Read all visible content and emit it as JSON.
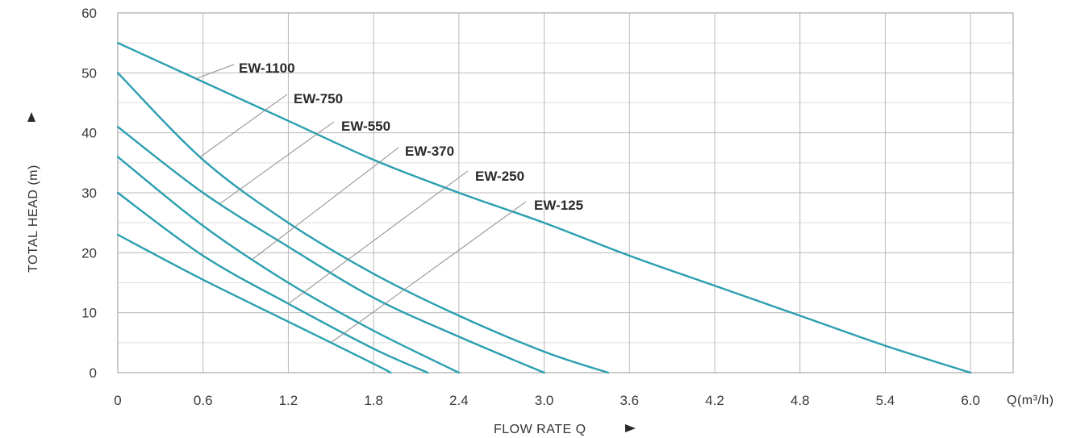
{
  "chart_data": {
    "type": "line",
    "title": "",
    "xlabel": "FLOW RATE Q",
    "ylabel": "TOTAL HEAD (m)",
    "x_unit_label": "Q(m³/h)",
    "xlim": [
      0,
      6.3
    ],
    "ylim": [
      0,
      60
    ],
    "x_ticks": [
      0,
      0.6,
      1.2,
      1.8,
      2.4,
      3.0,
      3.6,
      4.2,
      4.8,
      5.4,
      6.0
    ],
    "x_tick_labels": [
      "0",
      "0.6",
      "1.2",
      "1.8",
      "2.4",
      "3.0",
      "3.6",
      "4.2",
      "4.8",
      "5.4",
      "6.0"
    ],
    "y_ticks": [
      0,
      10,
      20,
      30,
      40,
      50,
      60
    ],
    "y_tick_labels": [
      "0",
      "10",
      "20",
      "30",
      "40",
      "50",
      "60"
    ],
    "grid": true,
    "line_color": "#2a9fb0",
    "series": [
      {
        "name": "EW-1100",
        "x": [
          0,
          0.6,
          1.2,
          1.8,
          2.4,
          3.0,
          3.6,
          4.2,
          4.8,
          5.4,
          6.0
        ],
        "y": [
          55,
          48.5,
          42,
          35.5,
          30,
          25,
          19.5,
          14.5,
          9.5,
          4.5,
          0
        ]
      },
      {
        "name": "EW-750",
        "x": [
          0,
          0.6,
          1.2,
          1.8,
          2.4,
          3.0,
          3.45
        ],
        "y": [
          50,
          35.5,
          25,
          16.5,
          9.5,
          3.5,
          0
        ]
      },
      {
        "name": "EW-550",
        "x": [
          0,
          0.6,
          1.2,
          1.8,
          2.4,
          3.0
        ],
        "y": [
          41,
          30,
          21,
          12.5,
          6,
          0
        ]
      },
      {
        "name": "EW-370",
        "x": [
          0,
          0.6,
          1.2,
          1.8,
          2.4
        ],
        "y": [
          36,
          24.5,
          15,
          7,
          0
        ]
      },
      {
        "name": "EW-250",
        "x": [
          0,
          0.6,
          1.2,
          1.8,
          2.18
        ],
        "y": [
          30,
          19.5,
          11.5,
          4,
          0
        ]
      },
      {
        "name": "EW-125",
        "x": [
          0,
          0.6,
          1.2,
          1.8,
          1.92
        ],
        "y": [
          23,
          15.5,
          8.5,
          1.5,
          0
        ]
      }
    ]
  }
}
